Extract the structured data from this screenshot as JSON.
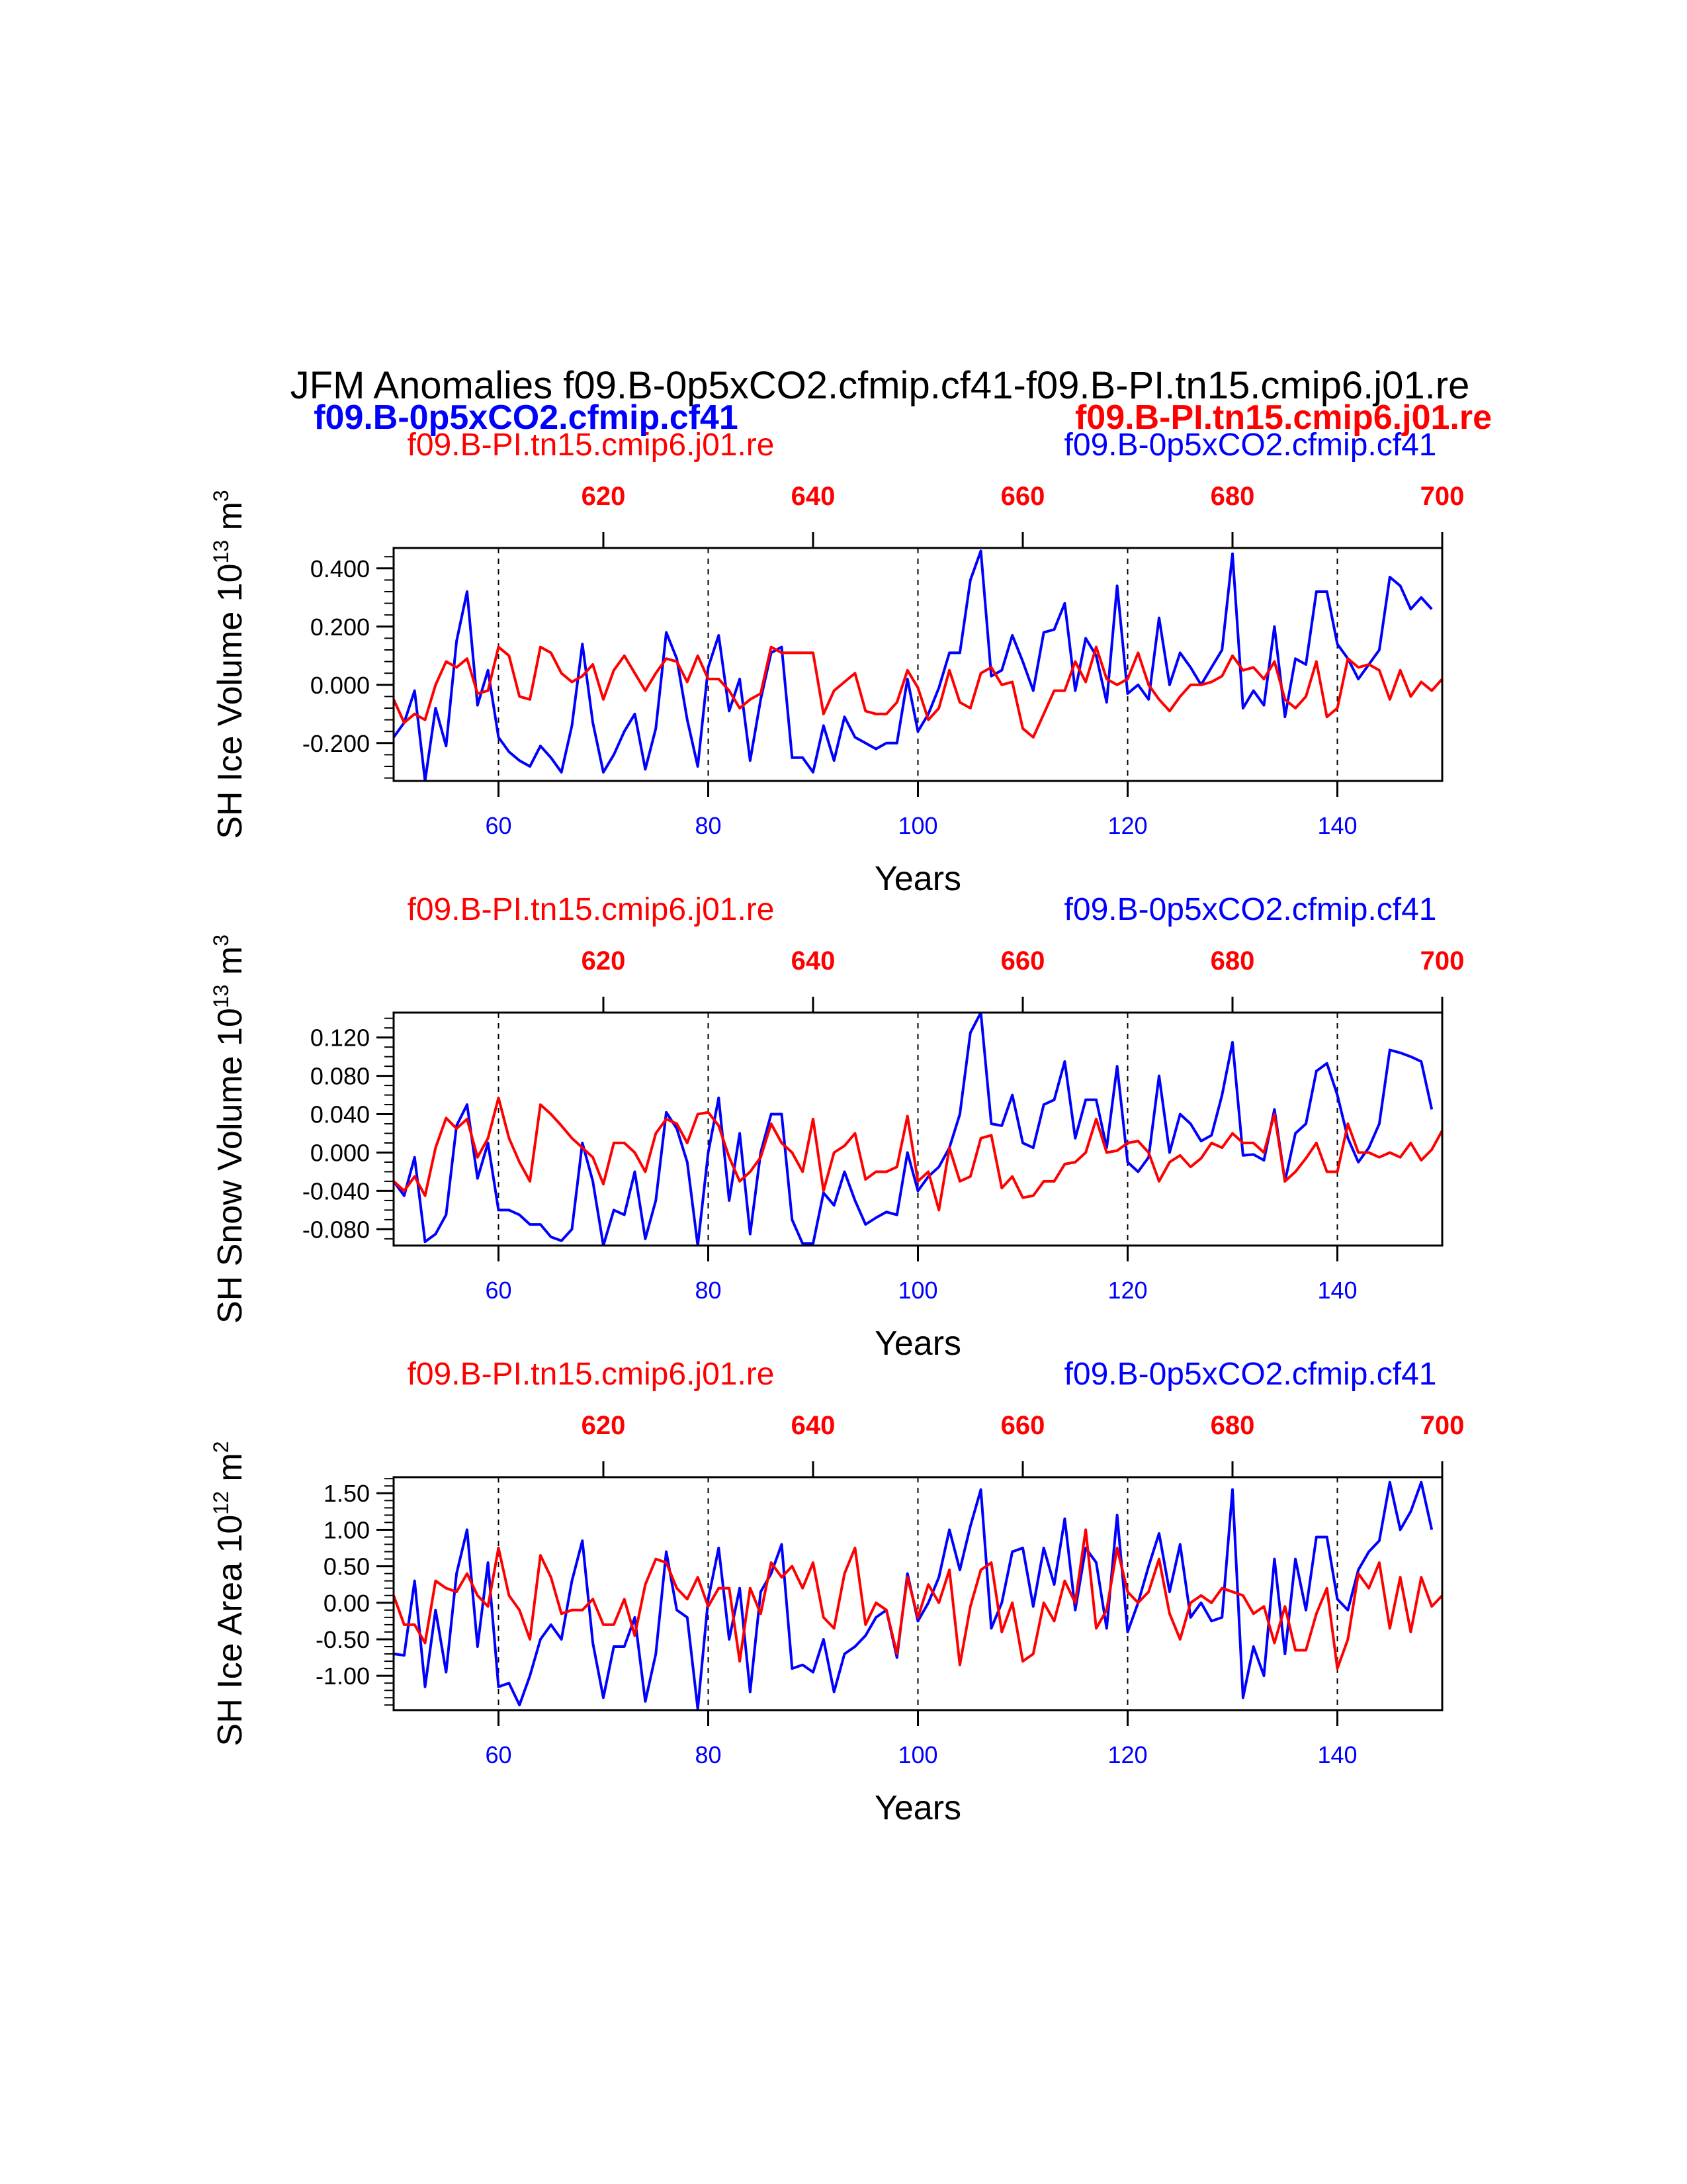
{
  "title": "JFM Anomalies f09.B-0p5xCO2.cfmip.cf41-f09.B-PI.tn15.cmip6.j01.re",
  "legend_left": "f09.B-0p5xCO2.cfmip.cf41",
  "legend_right": "f09.B-PI.tn15.cmip6.j01.re",
  "colors": {
    "case": "#0000ff",
    "ctrl": "#ff0000",
    "axis": "#000000"
  },
  "chart_data": [
    {
      "type": "line",
      "ylabel": "SH Ice Volume 10",
      "ylabel_exp": "13",
      "ylabel_unit": " m",
      "ylabel_unit_exp": "3",
      "xlabel": "Years",
      "top_left": "f09.B-PI.tn15.cmip6.j01.re",
      "top_right": "f09.B-0p5xCO2.cfmip.cf41",
      "xlim": [
        50,
        150
      ],
      "xlim_top": [
        600,
        700
      ],
      "ylim": [
        -0.33,
        0.47
      ],
      "yticks": [
        -0.2,
        0.0,
        0.2,
        0.4
      ],
      "ytick_labels": [
        "-0.200",
        "0.000",
        "0.200",
        "0.400"
      ],
      "yminor_step": 0.04,
      "xticks": [
        60,
        80,
        100,
        120,
        140
      ],
      "xticks_top": [
        620,
        640,
        660,
        680,
        700
      ],
      "vlines": [
        60,
        80,
        100,
        120,
        140
      ],
      "series": [
        {
          "name": "f09.B-0p5xCO2.cfmip.cf41",
          "color": "#0000ff",
          "x0": 50,
          "values": [
            -0.18,
            -0.13,
            -0.02,
            -0.33,
            -0.08,
            -0.21,
            0.15,
            0.32,
            -0.07,
            0.05,
            -0.18,
            -0.23,
            -0.26,
            -0.28,
            -0.21,
            -0.25,
            -0.3,
            -0.14,
            0.14,
            -0.13,
            -0.3,
            -0.24,
            -0.16,
            -0.1,
            -0.29,
            -0.15,
            0.18,
            0.09,
            -0.12,
            -0.28,
            0.06,
            0.17,
            -0.09,
            0.02,
            -0.26,
            -0.05,
            0.11,
            0.13,
            -0.25,
            -0.25,
            -0.3,
            -0.14,
            -0.26,
            -0.11,
            -0.18,
            -0.2,
            -0.22,
            -0.2,
            -0.2,
            0.02,
            -0.16,
            -0.1,
            -0.01,
            0.11,
            0.11,
            0.36,
            0.46,
            0.03,
            0.05,
            0.17,
            0.08,
            -0.02,
            0.18,
            0.19,
            0.28,
            -0.02,
            0.16,
            0.1,
            -0.06,
            0.34,
            -0.03,
            0.0,
            -0.05,
            0.23,
            0.0,
            0.11,
            0.06,
            0.0,
            0.06,
            0.12,
            0.45,
            -0.08,
            -0.02,
            -0.07,
            0.2,
            -0.11,
            0.09,
            0.07,
            0.32,
            0.32,
            0.14,
            0.09,
            0.02,
            0.07,
            0.12,
            0.37,
            0.34,
            0.26,
            0.3,
            0.26
          ]
        },
        {
          "name": "f09.B-PI.tn15.cmip6.j01.re",
          "color": "#ff0000",
          "x0": 50,
          "values": [
            -0.05,
            -0.13,
            -0.1,
            -0.12,
            0.0,
            0.08,
            0.06,
            0.09,
            -0.03,
            -0.02,
            0.13,
            0.1,
            -0.04,
            -0.05,
            0.13,
            0.11,
            0.04,
            0.01,
            0.03,
            0.07,
            -0.05,
            0.05,
            0.1,
            0.04,
            -0.02,
            0.04,
            0.09,
            0.08,
            0.01,
            0.1,
            0.02,
            0.02,
            -0.02,
            -0.08,
            -0.05,
            -0.03,
            0.13,
            0.11,
            0.11,
            0.11,
            0.11,
            -0.1,
            -0.02,
            0.01,
            0.04,
            -0.09,
            -0.1,
            -0.1,
            -0.06,
            0.05,
            -0.01,
            -0.12,
            -0.08,
            0.05,
            -0.06,
            -0.08,
            0.04,
            0.06,
            0.0,
            0.01,
            -0.15,
            -0.18,
            -0.1,
            -0.02,
            -0.02,
            0.08,
            0.01,
            0.13,
            0.02,
            0.0,
            0.02,
            0.11,
            0.0,
            -0.05,
            -0.09,
            -0.04,
            0.0,
            0.0,
            0.01,
            0.03,
            0.1,
            0.05,
            0.06,
            0.02,
            0.08,
            -0.05,
            -0.08,
            -0.04,
            0.08,
            -0.11,
            -0.08,
            0.09,
            0.06,
            0.07,
            0.05,
            -0.05,
            0.05,
            -0.04,
            0.01,
            -0.02,
            0.02
          ]
        }
      ]
    },
    {
      "type": "line",
      "ylabel": "SH Snow Volume 10",
      "ylabel_exp": "13",
      "ylabel_unit": " m",
      "ylabel_unit_exp": "3",
      "xlabel": "Years",
      "top_left": "f09.B-PI.tn15.cmip6.j01.re",
      "top_right": "f09.B-0p5xCO2.cfmip.cf41",
      "xlim": [
        50,
        150
      ],
      "xlim_top": [
        600,
        700
      ],
      "ylim": [
        -0.097,
        0.146
      ],
      "yticks": [
        -0.08,
        -0.04,
        0.0,
        0.04,
        0.08,
        0.12
      ],
      "ytick_labels": [
        "-0.080",
        "-0.040",
        "0.000",
        "0.040",
        "0.080",
        "0.120"
      ],
      "yminor_step": 0.01,
      "xticks": [
        60,
        80,
        100,
        120,
        140
      ],
      "xticks_top": [
        620,
        640,
        660,
        680,
        700
      ],
      "vlines": [
        60,
        80,
        100,
        120,
        140
      ],
      "series": [
        {
          "name": "f09.B-0p5xCO2.cfmip.cf41",
          "color": "#0000ff",
          "x0": 50,
          "values": [
            -0.03,
            -0.045,
            -0.005,
            -0.093,
            -0.085,
            -0.065,
            0.028,
            0.05,
            -0.027,
            0.01,
            -0.06,
            -0.06,
            -0.065,
            -0.075,
            -0.075,
            -0.088,
            -0.092,
            -0.08,
            0.01,
            -0.03,
            -0.097,
            -0.06,
            -0.065,
            -0.02,
            -0.09,
            -0.05,
            0.042,
            0.025,
            -0.01,
            -0.097,
            0.0,
            0.057,
            -0.05,
            0.02,
            -0.085,
            0.0,
            0.04,
            0.04,
            -0.07,
            -0.095,
            -0.095,
            -0.042,
            -0.055,
            -0.02,
            -0.05,
            -0.075,
            -0.068,
            -0.062,
            -0.065,
            0.0,
            -0.04,
            -0.025,
            -0.015,
            0.005,
            0.04,
            0.125,
            0.146,
            0.03,
            0.028,
            0.06,
            0.01,
            0.005,
            0.05,
            0.055,
            0.095,
            0.015,
            0.055,
            0.055,
            0.005,
            0.09,
            -0.01,
            -0.02,
            -0.005,
            0.08,
            0.0,
            0.04,
            0.03,
            0.012,
            0.018,
            0.06,
            0.115,
            -0.003,
            -0.002,
            -0.008,
            0.045,
            -0.03,
            0.02,
            0.03,
            0.085,
            0.093,
            0.06,
            0.015,
            -0.01,
            0.005,
            0.03,
            0.107,
            0.104,
            0.1,
            0.095,
            0.045
          ]
        },
        {
          "name": "f09.B-PI.tn15.cmip6.j01.re",
          "color": "#ff0000",
          "x0": 50,
          "values": [
            -0.03,
            -0.04,
            -0.025,
            -0.045,
            0.005,
            0.036,
            0.025,
            0.035,
            -0.005,
            0.015,
            0.057,
            0.015,
            -0.01,
            -0.03,
            0.05,
            0.04,
            0.028,
            0.015,
            0.005,
            -0.005,
            -0.033,
            0.01,
            0.01,
            0.0,
            -0.02,
            0.02,
            0.035,
            0.03,
            0.01,
            0.04,
            0.042,
            0.028,
            -0.005,
            -0.03,
            -0.02,
            -0.005,
            0.03,
            0.01,
            0.0,
            -0.02,
            0.035,
            -0.04,
            0.0,
            0.007,
            0.02,
            -0.028,
            -0.02,
            -0.02,
            -0.015,
            0.038,
            -0.03,
            -0.02,
            -0.06,
            0.005,
            -0.03,
            -0.025,
            0.015,
            0.018,
            -0.037,
            -0.025,
            -0.047,
            -0.045,
            -0.03,
            -0.03,
            -0.012,
            -0.01,
            0.0,
            0.035,
            0.0,
            0.002,
            0.01,
            0.012,
            0.0,
            -0.03,
            -0.01,
            -0.003,
            -0.015,
            -0.006,
            0.01,
            0.005,
            0.02,
            0.01,
            0.01,
            0.0,
            0.04,
            -0.03,
            -0.02,
            -0.006,
            0.01,
            -0.02,
            -0.02,
            0.03,
            0.0,
            0.0,
            -0.005,
            0.0,
            -0.005,
            0.01,
            -0.008,
            0.003,
            0.023
          ]
        }
      ]
    },
    {
      "type": "line",
      "ylabel": "SH Ice Area 10",
      "ylabel_exp": "12",
      "ylabel_unit": " m",
      "ylabel_unit_exp": "2",
      "xlabel": "Years",
      "top_left": "f09.B-PI.tn15.cmip6.j01.re",
      "top_right": "f09.B-0p5xCO2.cfmip.cf41",
      "xlim": [
        50,
        150
      ],
      "xlim_top": [
        600,
        700
      ],
      "ylim": [
        -1.47,
        1.72
      ],
      "yticks": [
        -1.0,
        -0.5,
        0.0,
        0.5,
        1.0,
        1.5
      ],
      "ytick_labels": [
        "-1.00",
        "-0.50",
        "0.00",
        "0.50",
        "1.00",
        "1.50"
      ],
      "yminor_step": 0.1,
      "xticks": [
        60,
        80,
        100,
        120,
        140
      ],
      "xticks_top": [
        620,
        640,
        660,
        680,
        700
      ],
      "vlines": [
        60,
        80,
        100,
        120,
        140
      ],
      "series": [
        {
          "name": "f09.B-0p5xCO2.cfmip.cf41",
          "color": "#0000ff",
          "x0": 50,
          "values": [
            -0.7,
            -0.72,
            0.3,
            -1.15,
            -0.1,
            -0.95,
            0.4,
            1.0,
            -0.6,
            0.55,
            -1.15,
            -1.1,
            -1.4,
            -1.0,
            -0.5,
            -0.3,
            -0.5,
            0.3,
            0.85,
            -0.55,
            -1.3,
            -0.6,
            -0.6,
            -0.2,
            -1.35,
            -0.7,
            0.7,
            -0.1,
            -0.2,
            -1.45,
            0.05,
            0.75,
            -0.5,
            0.2,
            -1.22,
            0.15,
            0.4,
            0.8,
            -0.9,
            -0.85,
            -0.95,
            -0.5,
            -1.22,
            -0.7,
            -0.6,
            -0.45,
            -0.2,
            -0.1,
            -0.75,
            0.4,
            -0.25,
            0.0,
            0.35,
            1.0,
            0.45,
            1.05,
            1.55,
            -0.35,
            0.0,
            0.7,
            0.75,
            -0.05,
            0.75,
            0.25,
            1.15,
            -0.1,
            0.75,
            0.55,
            -0.35,
            1.2,
            -0.4,
            0.0,
            0.5,
            0.95,
            0.15,
            0.8,
            -0.2,
            0.0,
            -0.25,
            -0.2,
            1.55,
            -1.3,
            -0.6,
            -1.0,
            0.6,
            -0.7,
            0.6,
            -0.1,
            0.9,
            0.9,
            0.05,
            -0.1,
            0.45,
            0.7,
            0.85,
            1.65,
            1.0,
            1.25,
            1.65,
            1.0
          ]
        },
        {
          "name": "f09.B-PI.tn15.cmip6.j01.re",
          "color": "#ff0000",
          "x0": 50,
          "values": [
            0.1,
            -0.3,
            -0.3,
            -0.55,
            0.3,
            0.2,
            0.15,
            0.4,
            0.1,
            -0.05,
            0.75,
            0.1,
            -0.1,
            -0.5,
            0.65,
            0.35,
            -0.15,
            -0.1,
            -0.1,
            0.05,
            -0.3,
            -0.3,
            0.05,
            -0.45,
            0.25,
            0.6,
            0.55,
            0.2,
            0.05,
            0.35,
            -0.05,
            0.2,
            0.2,
            -0.8,
            0.2,
            -0.15,
            0.55,
            0.35,
            0.5,
            0.2,
            0.55,
            -0.2,
            -0.35,
            0.4,
            0.75,
            -0.3,
            0.0,
            -0.1,
            -0.7,
            0.35,
            -0.2,
            0.25,
            0.0,
            0.45,
            -0.85,
            -0.05,
            0.45,
            0.55,
            -0.4,
            0.0,
            -0.8,
            -0.7,
            0.0,
            -0.25,
            0.3,
            0.0,
            1.0,
            -0.35,
            -0.1,
            0.75,
            0.15,
            0.0,
            0.15,
            0.6,
            -0.15,
            -0.5,
            0.0,
            0.1,
            0.0,
            0.2,
            0.15,
            0.1,
            -0.15,
            -0.05,
            -0.55,
            -0.05,
            -0.65,
            -0.65,
            -0.15,
            0.2,
            -0.9,
            -0.5,
            0.4,
            0.2,
            0.55,
            -0.35,
            0.35,
            -0.4,
            0.35,
            -0.05,
            0.1
          ]
        }
      ]
    }
  ]
}
